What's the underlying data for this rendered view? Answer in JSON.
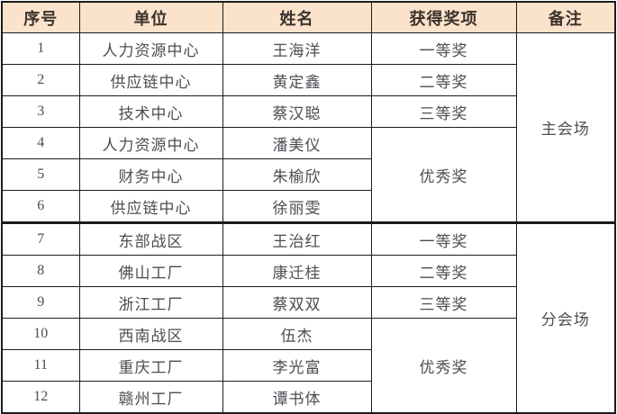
{
  "colors": {
    "header_bg": "#fbe2cb",
    "border": "#1c1c1c",
    "header_text": "#3a332c",
    "body_text": "#4c4c54"
  },
  "table": {
    "headers": {
      "no": "序号",
      "unit": "单位",
      "name": "姓名",
      "award": "获得奖项",
      "remark": "备注"
    },
    "rows": [
      {
        "no": "1",
        "unit": "人力资源中心",
        "name": "王海洋",
        "award": "一等奖",
        "award_span": 1,
        "remark": "主会场",
        "remark_span": 6
      },
      {
        "no": "2",
        "unit": "供应链中心",
        "name": "黄定鑫",
        "award": "二等奖",
        "award_span": 1
      },
      {
        "no": "3",
        "unit": "技术中心",
        "name": "蔡汉聪",
        "award": "三等奖",
        "award_span": 1
      },
      {
        "no": "4",
        "unit": "人力资源中心",
        "name": "潘美仪",
        "award": "优秀奖",
        "award_span": 3
      },
      {
        "no": "5",
        "unit": "财务中心",
        "name": "朱榆欣"
      },
      {
        "no": "6",
        "unit": "供应链中心",
        "name": "徐丽雯"
      },
      {
        "no": "7",
        "unit": "东部战区",
        "name": "王治红",
        "award": "一等奖",
        "award_span": 1,
        "remark": "分会场",
        "remark_span": 6,
        "section_start": true
      },
      {
        "no": "8",
        "unit": "佛山工厂",
        "name": "康迁桂",
        "award": "二等奖",
        "award_span": 1
      },
      {
        "no": "9",
        "unit": "浙江工厂",
        "name": "蔡双双",
        "award": "三等奖",
        "award_span": 1
      },
      {
        "no": "10",
        "unit": "西南战区",
        "name": "伍杰",
        "award": "优秀奖",
        "award_span": 3
      },
      {
        "no": "11",
        "unit": "重庆工厂",
        "name": "李光富"
      },
      {
        "no": "12",
        "unit": "赣州工厂",
        "name": "谭书体"
      }
    ]
  }
}
